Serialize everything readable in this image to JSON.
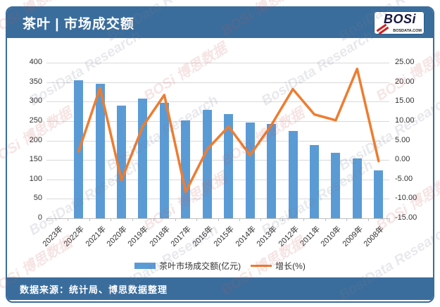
{
  "header": {
    "title": "茶叶 | 市场成交额",
    "logo": {
      "text": "BOSi",
      "domain": "BOSDATA.COM"
    }
  },
  "footer": {
    "source": "数据来源：统计局、博思数据整理"
  },
  "colors": {
    "header_bar": "#3a6d9c",
    "bar_fill": "#5b9bd5",
    "line_stroke": "#ed7d31",
    "gridline": "#d9d9d9",
    "watermark_red": "rgba(200,85,80,0.16)",
    "watermark_gray": "rgba(120,125,140,0.17)"
  },
  "watermark": {
    "texts": [
      "BOSi 博思数据",
      "BosiData Research"
    ]
  },
  "chart_data": {
    "type": "bar",
    "subtype": "bar-line-combo",
    "categories": [
      "2023年",
      "2022年",
      "2021年",
      "2020年",
      "2019年",
      "2018年",
      "2017年",
      "2016年",
      "2015年",
      "2014年",
      "2013年",
      "2012年",
      "2011年",
      "2010年",
      "2009年",
      "2008年"
    ],
    "series": [
      {
        "name": "茶叶市场成交额(亿元)",
        "type": "bar",
        "axis": "left",
        "color": "#5b9bd5",
        "values": [
          null,
          355,
          345,
          289,
          307,
          296,
          251,
          278,
          268,
          246,
          243,
          224,
          189,
          168,
          154,
          124
        ]
      },
      {
        "name": "增长(%)",
        "type": "line",
        "axis": "right",
        "color": "#ed7d31",
        "values": [
          null,
          2.2,
          18.5,
          -5.2,
          8.7,
          16.7,
          -8.2,
          2.7,
          8.6,
          1.2,
          9.0,
          18.2,
          11.7,
          10.2,
          23.4,
          -0.3
        ]
      }
    ],
    "left_axis": {
      "min": 0,
      "max": 400,
      "step": 50,
      "ticks": [
        "400",
        "350",
        "300",
        "250",
        "200",
        "150",
        "100",
        "50",
        "0"
      ]
    },
    "right_axis": {
      "min": -15,
      "max": 25,
      "step": 5,
      "ticks": [
        "25.00",
        "20.00",
        "15.00",
        "10.00",
        "5.00",
        "0.00",
        "-5.00",
        "-10.00",
        "-15.00"
      ]
    },
    "grid": true,
    "legend_position": "bottom",
    "title": "茶叶 | 市场成交额",
    "xlabel": "",
    "ylabel": ""
  }
}
